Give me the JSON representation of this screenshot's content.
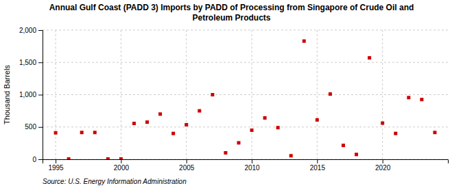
{
  "chart_data": {
    "type": "scatter",
    "title": "Annual Gulf Coast (PADD 3) Imports by PADD of Processing from Singapore of Crude Oil and\nPetroleum Products",
    "ylabel": "Thousand Barrels",
    "annotations": [
      "Source: U.S. Energy Information Administration"
    ],
    "x": [
      1995,
      1996,
      1997,
      1998,
      1999,
      2000,
      2001,
      2002,
      2003,
      2004,
      2005,
      2006,
      2007,
      2008,
      2009,
      2010,
      2011,
      2012,
      2013,
      2014,
      2015,
      2016,
      2017,
      2018,
      2019,
      2020,
      2021,
      2022,
      2023,
      2024
    ],
    "values": [
      410,
      5,
      415,
      415,
      5,
      5,
      555,
      575,
      700,
      400,
      535,
      750,
      1000,
      100,
      255,
      450,
      640,
      490,
      55,
      1830,
      610,
      1010,
      215,
      75,
      1570,
      560,
      400,
      955,
      925,
      415
    ],
    "color": "#cc0000",
    "marker": "square",
    "xlim": [
      1994,
      2025
    ],
    "xticks": [
      1995,
      2000,
      2005,
      2010,
      2015,
      2020
    ],
    "ylim": [
      0,
      2000
    ],
    "yticks": [
      0,
      500,
      {
        "value": 1000,
        "label": "1,000"
      },
      {
        "value": 1500,
        "label": "1,500"
      },
      {
        "value": 2000,
        "label": "2,000"
      }
    ],
    "grid": true
  }
}
